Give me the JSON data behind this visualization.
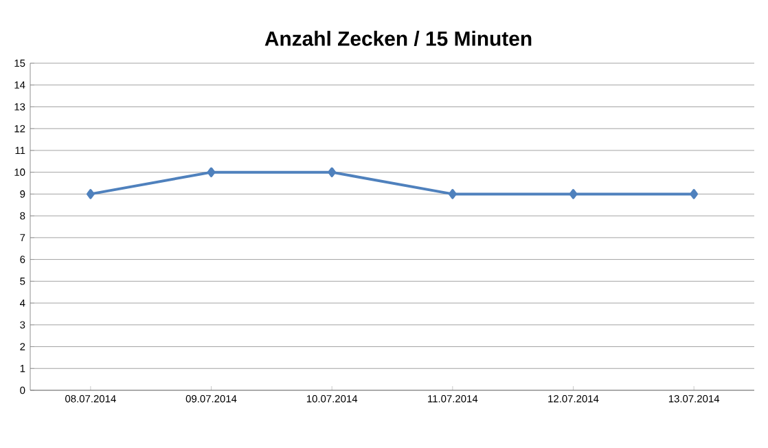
{
  "chart_data": {
    "type": "line",
    "title": "Anzahl Zecken / 15 Minuten",
    "categories": [
      "08.07.2014",
      "09.07.2014",
      "10.07.2014",
      "11.07.2014",
      "12.07.2014",
      "13.07.2014"
    ],
    "values": [
      9,
      10,
      10,
      9,
      9,
      9
    ],
    "color": "#4f81bd",
    "marker": "diamond",
    "line_style": "solid",
    "ylim": [
      0,
      15
    ],
    "yticks": [
      0,
      1,
      2,
      3,
      4,
      5,
      6,
      7,
      8,
      9,
      10,
      11,
      12,
      13,
      14,
      15
    ],
    "grid": "y"
  }
}
